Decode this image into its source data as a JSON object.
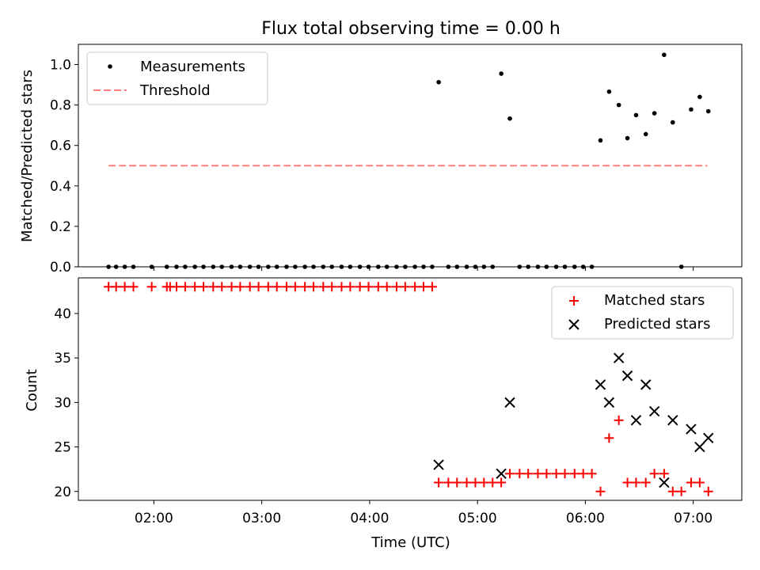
{
  "title": "Flux total observing time = 0.00 h",
  "colors": {
    "measurement": "#000000",
    "threshold": "#ff7f7f",
    "matched": "#ff0000",
    "predicted": "#000000",
    "axis": "#000000"
  },
  "chart_data": [
    {
      "type": "scatter",
      "title": "Flux total observing time = 0.00 h",
      "xlabel": "",
      "ylabel": "Matched/Predicted stars",
      "xlim": [
        1.3,
        7.45
      ],
      "ylim": [
        0.0,
        1.1
      ],
      "yticks": [
        0.0,
        0.2,
        0.4,
        0.6,
        0.8,
        1.0
      ],
      "ytick_labels": [
        "0.0",
        "0.2",
        "0.4",
        "0.6",
        "0.8",
        "1.0"
      ],
      "x_ticks_hours": [
        2,
        3,
        4,
        5,
        6,
        7
      ],
      "grid": false,
      "legend": {
        "placement": "upper-left",
        "entries": [
          {
            "label": "Measurements",
            "marker": "dot"
          },
          {
            "label": "Threshold",
            "marker": "dashed-line"
          }
        ]
      },
      "threshold": {
        "name": "Threshold",
        "y": 0.5,
        "x": [
          1.58,
          7.13
        ]
      },
      "series": [
        {
          "name": "Measurements",
          "points": [
            [
              1.58,
              0
            ],
            [
              1.65,
              0
            ],
            [
              1.73,
              0
            ],
            [
              1.81,
              0
            ],
            [
              1.98,
              0
            ],
            [
              2.12,
              0
            ],
            [
              2.21,
              0
            ],
            [
              2.29,
              0
            ],
            [
              2.38,
              0
            ],
            [
              2.46,
              0
            ],
            [
              2.55,
              0
            ],
            [
              2.63,
              0
            ],
            [
              2.72,
              0
            ],
            [
              2.8,
              0
            ],
            [
              2.89,
              0
            ],
            [
              2.97,
              0
            ],
            [
              3.06,
              0
            ],
            [
              3.14,
              0
            ],
            [
              3.23,
              0
            ],
            [
              3.31,
              0
            ],
            [
              3.4,
              0
            ],
            [
              3.48,
              0
            ],
            [
              3.57,
              0
            ],
            [
              3.65,
              0
            ],
            [
              3.74,
              0
            ],
            [
              3.82,
              0
            ],
            [
              3.91,
              0
            ],
            [
              3.99,
              0
            ],
            [
              4.08,
              0
            ],
            [
              4.16,
              0
            ],
            [
              4.25,
              0
            ],
            [
              4.33,
              0
            ],
            [
              4.42,
              0
            ],
            [
              4.5,
              0
            ],
            [
              4.58,
              0
            ],
            [
              4.64,
              0.913
            ],
            [
              4.73,
              0
            ],
            [
              4.81,
              0
            ],
            [
              4.9,
              0
            ],
            [
              4.98,
              0
            ],
            [
              5.06,
              0
            ],
            [
              5.14,
              0
            ],
            [
              5.22,
              0.955
            ],
            [
              5.3,
              0.733
            ],
            [
              5.39,
              0
            ],
            [
              5.47,
              0
            ],
            [
              5.56,
              0
            ],
            [
              5.64,
              0
            ],
            [
              5.73,
              0
            ],
            [
              5.81,
              0
            ],
            [
              5.9,
              0
            ],
            [
              5.98,
              0
            ],
            [
              6.06,
              0
            ],
            [
              6.14,
              0.625
            ],
            [
              6.22,
              0.866
            ],
            [
              6.31,
              0.8
            ],
            [
              6.39,
              0.636
            ],
            [
              6.47,
              0.75
            ],
            [
              6.56,
              0.656
            ],
            [
              6.64,
              0.759
            ],
            [
              6.73,
              1.048
            ],
            [
              6.81,
              0.714
            ],
            [
              6.89,
              0
            ],
            [
              6.98,
              0.778
            ],
            [
              7.06,
              0.84
            ],
            [
              7.14,
              0.769
            ]
          ]
        }
      ]
    },
    {
      "type": "scatter",
      "title": "",
      "xlabel": "Time (UTC)",
      "ylabel": "Count",
      "xlim": [
        1.3,
        7.45
      ],
      "ylim": [
        19.0,
        44.0
      ],
      "yticks": [
        20,
        25,
        30,
        35,
        40
      ],
      "ytick_labels": [
        "20",
        "25",
        "30",
        "35",
        "40"
      ],
      "xticks": [
        2,
        3,
        4,
        5,
        6,
        7
      ],
      "xtick_labels": [
        "02:00",
        "03:00",
        "04:00",
        "05:00",
        "06:00",
        "07:00"
      ],
      "grid": false,
      "legend": {
        "placement": "upper-right",
        "entries": [
          {
            "label": "Matched stars",
            "marker": "plus"
          },
          {
            "label": "Predicted stars",
            "marker": "x"
          }
        ]
      },
      "series": [
        {
          "name": "Matched stars",
          "points": [
            [
              1.58,
              43
            ],
            [
              1.65,
              43
            ],
            [
              1.73,
              43
            ],
            [
              1.81,
              43
            ],
            [
              1.98,
              43
            ],
            [
              2.12,
              43
            ],
            [
              2.15,
              43
            ],
            [
              2.21,
              43
            ],
            [
              2.29,
              43
            ],
            [
              2.38,
              43
            ],
            [
              2.46,
              43
            ],
            [
              2.55,
              43
            ],
            [
              2.63,
              43
            ],
            [
              2.72,
              43
            ],
            [
              2.8,
              43
            ],
            [
              2.89,
              43
            ],
            [
              2.97,
              43
            ],
            [
              3.06,
              43
            ],
            [
              3.14,
              43
            ],
            [
              3.23,
              43
            ],
            [
              3.31,
              43
            ],
            [
              3.4,
              43
            ],
            [
              3.48,
              43
            ],
            [
              3.57,
              43
            ],
            [
              3.65,
              43
            ],
            [
              3.74,
              43
            ],
            [
              3.82,
              43
            ],
            [
              3.91,
              43
            ],
            [
              3.99,
              43
            ],
            [
              4.08,
              43
            ],
            [
              4.16,
              43
            ],
            [
              4.25,
              43
            ],
            [
              4.33,
              43
            ],
            [
              4.42,
              43
            ],
            [
              4.5,
              43
            ],
            [
              4.58,
              43
            ],
            [
              4.64,
              21
            ],
            [
              4.73,
              21
            ],
            [
              4.81,
              21
            ],
            [
              4.9,
              21
            ],
            [
              4.98,
              21
            ],
            [
              5.06,
              21
            ],
            [
              5.14,
              21
            ],
            [
              5.22,
              21
            ],
            [
              5.3,
              22
            ],
            [
              5.39,
              22
            ],
            [
              5.47,
              22
            ],
            [
              5.56,
              22
            ],
            [
              5.64,
              22
            ],
            [
              5.73,
              22
            ],
            [
              5.81,
              22
            ],
            [
              5.9,
              22
            ],
            [
              5.98,
              22
            ],
            [
              6.06,
              22
            ],
            [
              6.14,
              20
            ],
            [
              6.22,
              26
            ],
            [
              6.31,
              28
            ],
            [
              6.39,
              21
            ],
            [
              6.47,
              21
            ],
            [
              6.56,
              21
            ],
            [
              6.64,
              22
            ],
            [
              6.73,
              22
            ],
            [
              6.81,
              20
            ],
            [
              6.89,
              20
            ],
            [
              6.98,
              21
            ],
            [
              7.06,
              21
            ],
            [
              7.14,
              20
            ]
          ]
        },
        {
          "name": "Predicted stars",
          "points": [
            [
              4.64,
              23
            ],
            [
              5.22,
              22
            ],
            [
              5.3,
              30
            ],
            [
              6.14,
              32
            ],
            [
              6.22,
              30
            ],
            [
              6.31,
              35
            ],
            [
              6.39,
              33
            ],
            [
              6.47,
              28
            ],
            [
              6.56,
              32
            ],
            [
              6.64,
              29
            ],
            [
              6.73,
              21
            ],
            [
              6.81,
              28
            ],
            [
              6.98,
              27
            ],
            [
              7.06,
              25
            ],
            [
              7.14,
              26
            ]
          ]
        }
      ]
    }
  ]
}
